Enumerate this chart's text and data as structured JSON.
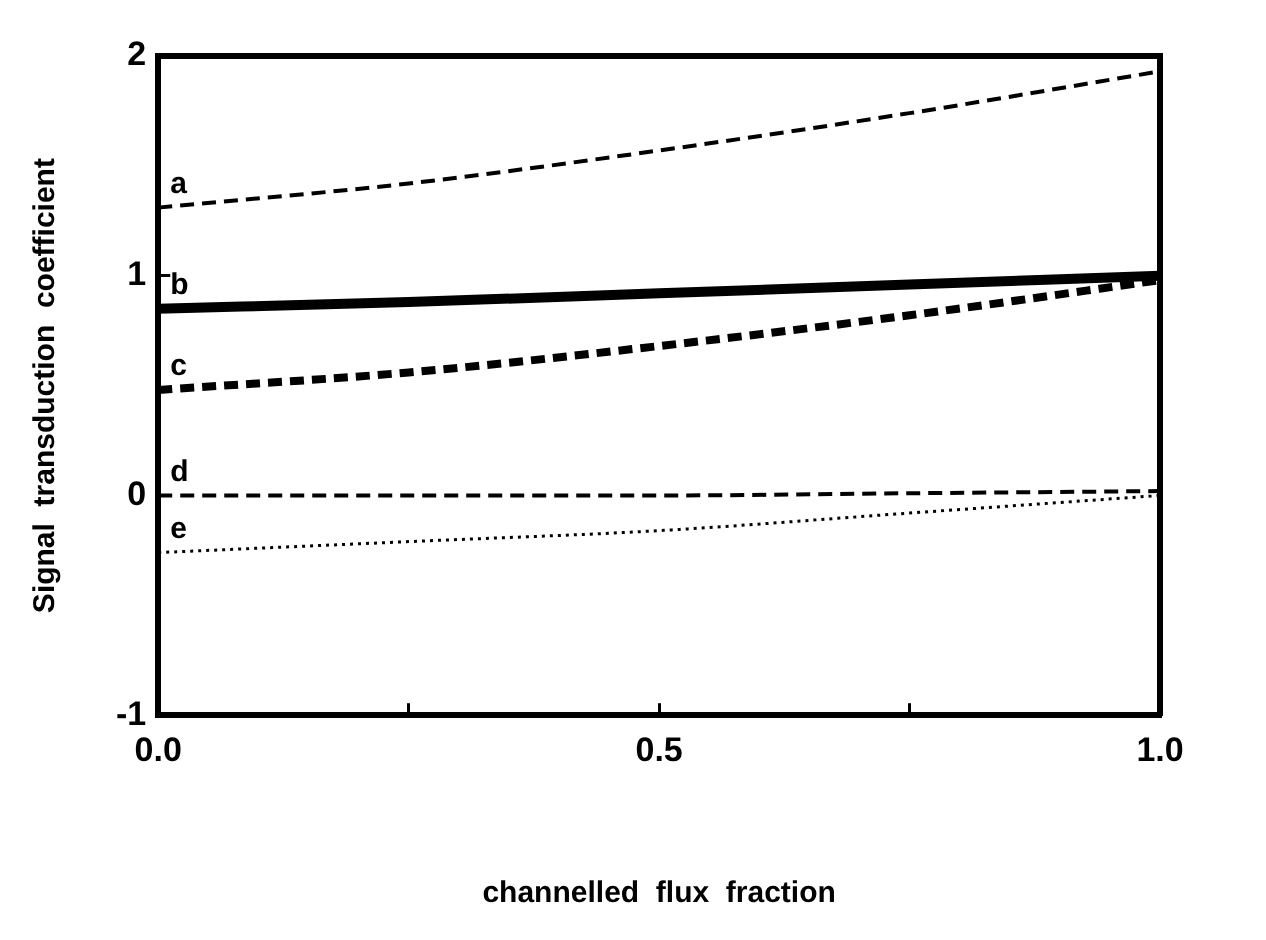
{
  "chart_data": {
    "type": "line",
    "xlabel": "channelled  flux  fraction",
    "ylabel": "Signal  transduction  coefficient",
    "x": [
      0,
      0.25,
      0.5,
      0.75,
      1
    ],
    "series": [
      {
        "name": "a",
        "color": "#000000",
        "line_style": "dashed",
        "values": [
          1.31,
          1.42,
          1.57,
          1.74,
          1.93
        ]
      },
      {
        "name": "b",
        "color": "#000000",
        "line_style": "solid",
        "values": [
          0.85,
          0.88,
          0.92,
          0.96,
          1.0
        ]
      },
      {
        "name": "c",
        "color": "#000000",
        "line_style": "dashed",
        "values": [
          0.48,
          0.56,
          0.68,
          0.82,
          0.98
        ]
      },
      {
        "name": "d",
        "color": "#000000",
        "line_style": "dashed",
        "values": [
          0,
          0,
          0,
          0.01,
          0.02
        ]
      },
      {
        "name": "e",
        "color": "#000000",
        "line_style": "dotted",
        "values": [
          -0.26,
          -0.21,
          -0.16,
          -0.08,
          0
        ]
      }
    ],
    "xlim": [
      0,
      1
    ],
    "ylim": [
      -1,
      2
    ],
    "xticks": [
      {
        "value": 0,
        "label": "0.0"
      },
      {
        "value": 0.25,
        "label": null
      },
      {
        "value": 0.5,
        "label": "0.5"
      },
      {
        "value": 0.75,
        "label": null
      },
      {
        "value": 1,
        "label": "1.0"
      }
    ],
    "yticks": [
      -1,
      0,
      1,
      2
    ],
    "grid": false,
    "legend": false,
    "marker": "none"
  }
}
